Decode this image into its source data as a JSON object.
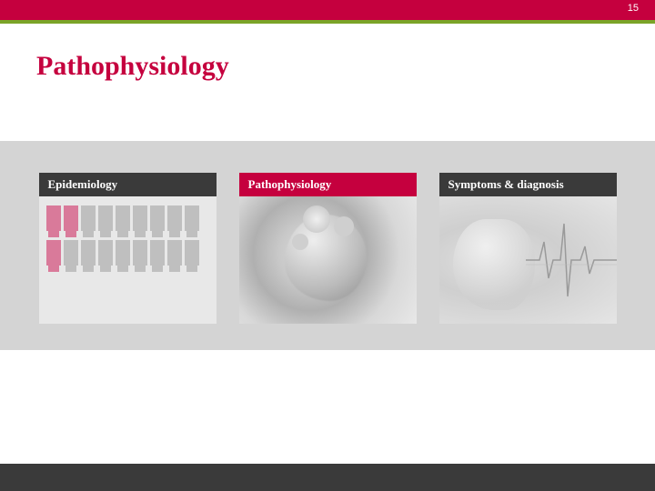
{
  "page_number": "15",
  "title": "Pathophysiology",
  "colors": {
    "accent": "#c5003e",
    "green": "#7ba428",
    "band": "#d4d4d4",
    "dark": "#3a3a3a",
    "person_accent": "#d97a9a",
    "person_grey": "#bfbfbf"
  },
  "cards": {
    "epidemiology": {
      "label": "Epidemiology",
      "header_style": "dark",
      "people_row1": [
        "accent",
        "accent",
        "grey",
        "grey",
        "grey",
        "grey",
        "grey",
        "grey",
        "grey"
      ],
      "people_row2": [
        "accent",
        "grey",
        "grey",
        "grey",
        "grey",
        "grey",
        "grey",
        "grey",
        "grey"
      ]
    },
    "pathophysiology": {
      "label": "Pathophysiology",
      "header_style": "accent"
    },
    "symptoms": {
      "label": "Symptoms & diagnosis",
      "header_style": "dark"
    }
  }
}
